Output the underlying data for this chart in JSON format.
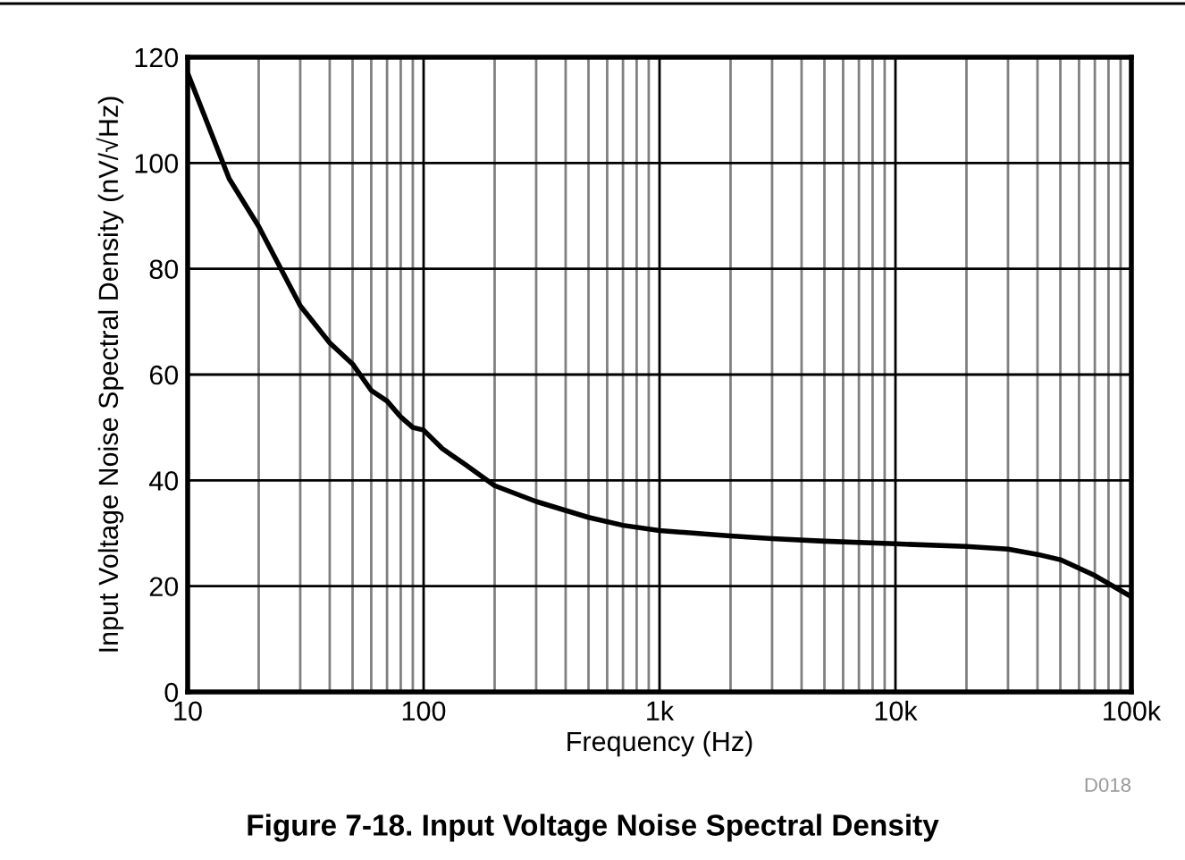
{
  "chart_data": {
    "type": "line",
    "xlabel": "Frequency (Hz)",
    "ylabel": "Input Voltage Noise Spectral Density (nV/√Hz)",
    "log": "x",
    "grid": true,
    "marker": "none",
    "line_style": "solid",
    "xlim": [
      10,
      100000
    ],
    "xticks": [
      10,
      100,
      {
        "value": 1000,
        "label": "1k"
      },
      {
        "value": 10000,
        "label": "10k"
      },
      {
        "value": 100000,
        "label": "100k"
      }
    ],
    "ylim": [
      0,
      120
    ],
    "yticks": [
      0,
      20,
      40,
      60,
      80,
      100,
      120
    ],
    "series": [
      {
        "color": "#000000",
        "x": [
          10,
          15,
          20,
          30,
          40,
          50,
          60,
          70,
          80,
          90,
          100,
          120,
          150,
          200,
          300,
          500,
          700,
          1000,
          2000,
          3000,
          5000,
          10000,
          20000,
          30000,
          40000,
          50000,
          70000,
          100000
        ],
        "values": [
          117,
          97,
          88,
          73,
          66,
          62,
          57,
          55,
          52,
          50,
          49.5,
          46,
          43,
          39,
          36,
          33,
          31.5,
          30.5,
          29.5,
          29,
          28.5,
          28,
          27.5,
          27,
          26,
          25,
          22,
          18
        ]
      }
    ],
    "annotations": [
      "D018",
      "Figure 7-18. Input Voltage Noise Spectral Density"
    ]
  }
}
